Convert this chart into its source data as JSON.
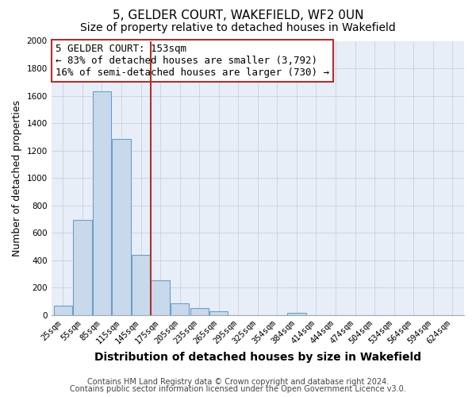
{
  "title": "5, GELDER COURT, WAKEFIELD, WF2 0UN",
  "subtitle": "Size of property relative to detached houses in Wakefield",
  "xlabel": "Distribution of detached houses by size in Wakefield",
  "ylabel": "Number of detached properties",
  "bar_labels": [
    "25sqm",
    "55sqm",
    "85sqm",
    "115sqm",
    "145sqm",
    "175sqm",
    "205sqm",
    "235sqm",
    "265sqm",
    "295sqm",
    "325sqm",
    "354sqm",
    "384sqm",
    "414sqm",
    "444sqm",
    "474sqm",
    "504sqm",
    "534sqm",
    "564sqm",
    "594sqm",
    "624sqm"
  ],
  "bar_values": [
    65,
    695,
    1635,
    1285,
    440,
    255,
    88,
    52,
    30,
    0,
    0,
    0,
    15,
    0,
    0,
    0,
    0,
    0,
    0,
    0,
    0
  ],
  "bar_color": "#c9d9ec",
  "bar_edgecolor": "#6a9fca",
  "vline_x": 4.5,
  "vline_color": "#b03030",
  "ylim": [
    0,
    2000
  ],
  "yticks": [
    0,
    200,
    400,
    600,
    800,
    1000,
    1200,
    1400,
    1600,
    1800,
    2000
  ],
  "annotation_title": "5 GELDER COURT: 153sqm",
  "annotation_line1": "← 83% of detached houses are smaller (3,792)",
  "annotation_line2": "16% of semi-detached houses are larger (730) →",
  "annotation_box_color": "#ffffff",
  "annotation_box_edgecolor": "#b03030",
  "footer_line1": "Contains HM Land Registry data © Crown copyright and database right 2024.",
  "footer_line2": "Contains public sector information licensed under the Open Government Licence v3.0.",
  "bg_color": "#ffffff",
  "plot_bg_color": "#e8eef8",
  "grid_color": "#c8d0e0",
  "title_fontsize": 11,
  "subtitle_fontsize": 10,
  "xlabel_fontsize": 10,
  "ylabel_fontsize": 9,
  "tick_fontsize": 7.5,
  "footer_fontsize": 7,
  "annotation_fontsize": 9
}
